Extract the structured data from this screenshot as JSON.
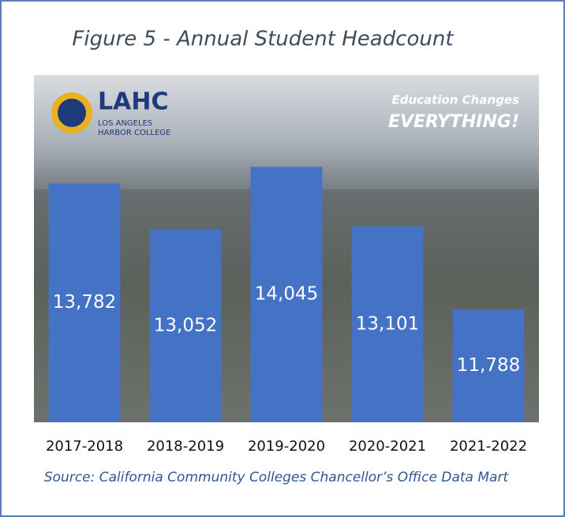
{
  "chart_data": {
    "type": "bar",
    "title": "Figure 5 - Annual Student Headcount",
    "categories": [
      "2017-2018",
      "2018-2019",
      "2019-2020",
      "2020-2021",
      "2021-2022"
    ],
    "values": [
      13782,
      13052,
      14045,
      13101,
      11788
    ],
    "value_labels": [
      "13,782",
      "13,052",
      "14,045",
      "13,101",
      "11,788"
    ],
    "color": "#4472c4",
    "ylim": [
      10000,
      15500
    ],
    "image_texts": [
      "LAHC",
      "LOS ANGELES",
      "HARBOR COLLEGE",
      "Education Changes",
      "EVERYTHING!"
    ],
    "source": "Source: California Community Colleges Chancellor’s Office Data Mart"
  }
}
